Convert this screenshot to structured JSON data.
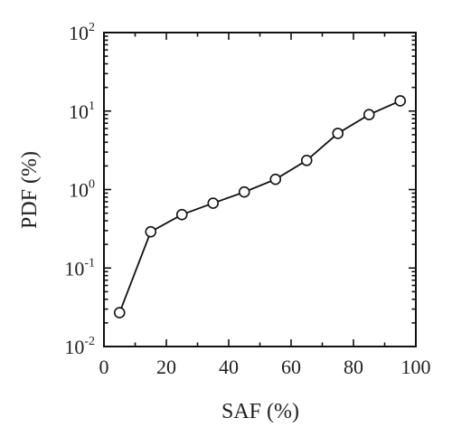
{
  "chart_data": {
    "type": "line",
    "title": "",
    "xlabel": "SAF (%)",
    "ylabel": "PDF (%)",
    "xlim": [
      0,
      100
    ],
    "ylim": [
      0.01,
      100
    ],
    "yscale": "log",
    "grid": false,
    "x_ticks": [
      0,
      20,
      40,
      60,
      80,
      100
    ],
    "x_minor_step": 10,
    "y_ticks": [
      {
        "value": 0.01,
        "base": "10",
        "exp": "-2"
      },
      {
        "value": 0.1,
        "base": "10",
        "exp": "-1"
      },
      {
        "value": 1,
        "base": "10",
        "exp": "0"
      },
      {
        "value": 10,
        "base": "10",
        "exp": "1"
      },
      {
        "value": 100,
        "base": "10",
        "exp": "2"
      }
    ],
    "marker": "open-circle",
    "series": [
      {
        "x": [
          5,
          15,
          25,
          35,
          45,
          55,
          65,
          75,
          85,
          95
        ],
        "y": [
          0.027,
          0.29,
          0.48,
          0.67,
          0.93,
          1.35,
          2.35,
          5.2,
          9.0,
          13.5
        ]
      }
    ]
  }
}
